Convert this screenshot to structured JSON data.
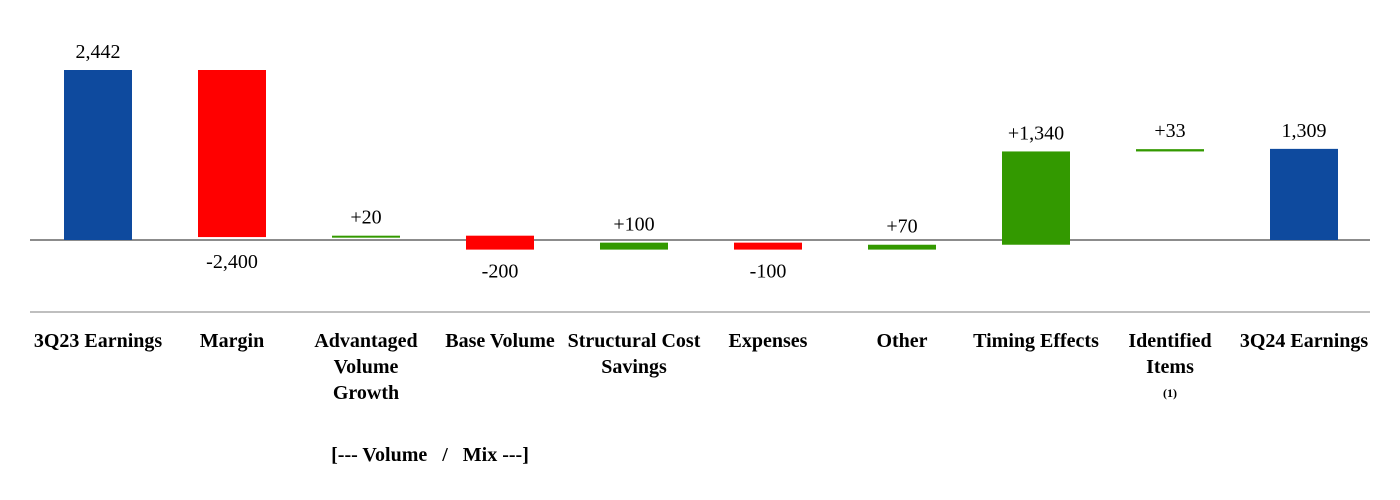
{
  "chart_data": {
    "type": "waterfall",
    "categories": [
      "3Q23 Earnings",
      "Margin",
      "Advantaged Volume Growth",
      "Base Volume",
      "Structural Cost Savings",
      "Expenses",
      "Other",
      "Timing Effects",
      "Identified Items",
      "3Q24 Earnings"
    ],
    "values": [
      2442,
      -2400,
      20,
      -200,
      100,
      -100,
      70,
      1340,
      33,
      1309
    ],
    "value_labels": [
      "2,442",
      "-2,400",
      "+20",
      "-200",
      "+100",
      "-100",
      "+70",
      "+1,340",
      "+33",
      "1,309"
    ],
    "colors": [
      "#0e4a9e",
      "#ff0000",
      "#339900",
      "#ff0000",
      "#339900",
      "#ff0000",
      "#339900",
      "#339900",
      "#339900",
      "#0e4a9e"
    ],
    "footnote": "(1)",
    "annotation": "[--- Volume   /   Mix ---]"
  }
}
